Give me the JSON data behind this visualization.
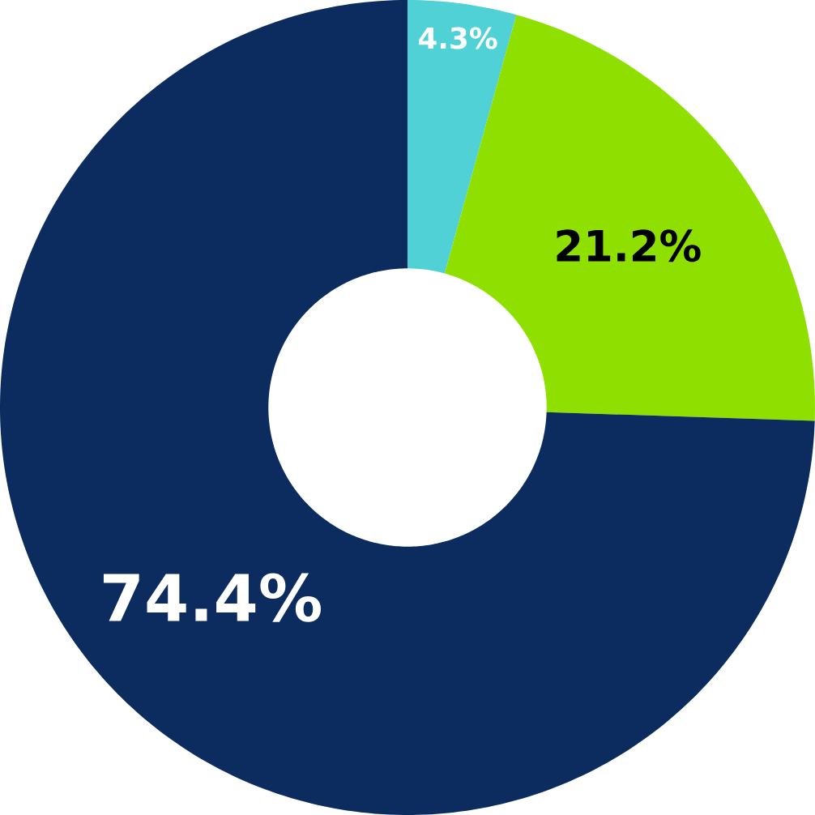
{
  "chart_data": {
    "type": "donut",
    "categories": [
      null,
      null,
      null
    ],
    "values": [
      4.3,
      21.2,
      74.4
    ],
    "colors": [
      "#4fd1d5",
      "#8fe000",
      "#0c2b5e"
    ],
    "value_labels": [
      "4.3%",
      "21.2%",
      "74.4%"
    ]
  }
}
